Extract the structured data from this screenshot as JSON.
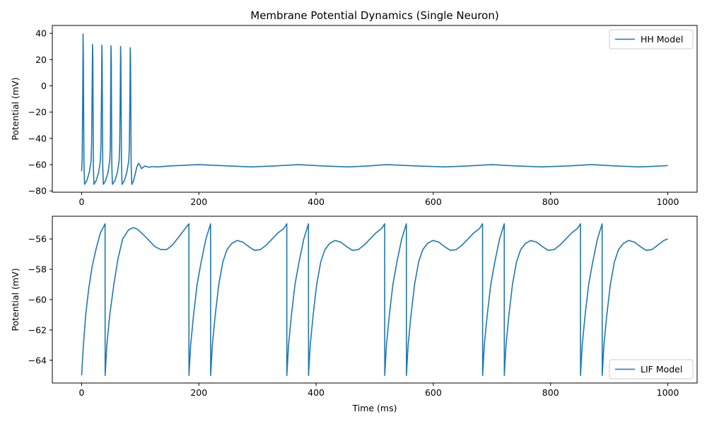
{
  "figure": {
    "title": "Membrane Potential Dynamics (Single Neuron)"
  },
  "chart_data": [
    {
      "type": "line",
      "title": "Membrane Potential Dynamics (Single Neuron)",
      "xlabel": "",
      "ylabel": "Potential (mV)",
      "xlim": [
        -50,
        1050
      ],
      "ylim": [
        -81,
        46
      ],
      "xticks": [
        0,
        200,
        400,
        600,
        800,
        1000
      ],
      "yticks": [
        -80,
        -60,
        -40,
        -20,
        0,
        20,
        40
      ],
      "grid": false,
      "legend_position": "top-right",
      "series": [
        {
          "name": "HH Model",
          "color": "#1f77b4",
          "points": [
            [
              0,
              -65
            ],
            [
              1,
              -55
            ],
            [
              2,
              0
            ],
            [
              2.5,
              39.5
            ],
            [
              3,
              20
            ],
            [
              4,
              -60
            ],
            [
              5,
              -75
            ],
            [
              9,
              -72
            ],
            [
              13,
              -66
            ],
            [
              16,
              -58
            ],
            [
              17,
              -45
            ],
            [
              18,
              0
            ],
            [
              18.6,
              31.5
            ],
            [
              19.2,
              20
            ],
            [
              20,
              -60
            ],
            [
              21,
              -75
            ],
            [
              25,
              -72
            ],
            [
              29,
              -66
            ],
            [
              32,
              -57
            ],
            [
              33,
              -45
            ],
            [
              34,
              0
            ],
            [
              34.5,
              31
            ],
            [
              35,
              20
            ],
            [
              36,
              -60
            ],
            [
              37,
              -75
            ],
            [
              41,
              -72
            ],
            [
              45,
              -66
            ],
            [
              48,
              -57
            ],
            [
              49,
              -45
            ],
            [
              49.6,
              0
            ],
            [
              50.1,
              30.5
            ],
            [
              50.6,
              20
            ],
            [
              51.5,
              -60
            ],
            [
              52.5,
              -75
            ],
            [
              57,
              -72
            ],
            [
              61,
              -66
            ],
            [
              64,
              -57
            ],
            [
              65,
              -45
            ],
            [
              66,
              0
            ],
            [
              66.5,
              30
            ],
            [
              67,
              20
            ],
            [
              68,
              -60
            ],
            [
              69,
              -75
            ],
            [
              73,
              -72
            ],
            [
              77,
              -66
            ],
            [
              80.5,
              -57
            ],
            [
              81.5,
              -45
            ],
            [
              82.5,
              0
            ],
            [
              83,
              29
            ],
            [
              83.5,
              20
            ],
            [
              84.5,
              -60
            ],
            [
              85.5,
              -75
            ],
            [
              88,
              -73
            ],
            [
              91,
              -68
            ],
            [
              94,
              -62
            ],
            [
              97,
              -59
            ],
            [
              99,
              -60
            ],
            [
              102,
              -63
            ],
            [
              105,
              -62
            ],
            [
              108,
              -61
            ],
            [
              111,
              -61.5
            ],
            [
              115,
              -62
            ],
            [
              120,
              -61.5
            ],
            [
              130,
              -61.7
            ],
            [
              150,
              -61
            ],
            [
              200,
              -60
            ],
            [
              250,
              -61
            ],
            [
              290,
              -61.7
            ],
            [
              330,
              -61
            ],
            [
              370,
              -60
            ],
            [
              410,
              -61
            ],
            [
              455,
              -61.7
            ],
            [
              490,
              -61
            ],
            [
              520,
              -60
            ],
            [
              570,
              -61
            ],
            [
              620,
              -61.7
            ],
            [
              660,
              -61
            ],
            [
              700,
              -60
            ],
            [
              740,
              -61
            ],
            [
              785,
              -61.7
            ],
            [
              830,
              -61
            ],
            [
              870,
              -60
            ],
            [
              910,
              -61
            ],
            [
              950,
              -61.7
            ],
            [
              975,
              -61.3
            ],
            [
              1000,
              -60.7
            ]
          ]
        }
      ]
    },
    {
      "type": "line",
      "title": "",
      "xlabel": "Time (ms)",
      "ylabel": "Potential (mV)",
      "xlim": [
        -50,
        1050
      ],
      "ylim": [
        -65.5,
        -54.5
      ],
      "xticks": [
        0,
        200,
        400,
        600,
        800,
        1000
      ],
      "yticks": [
        -64,
        -62,
        -60,
        -58,
        -56
      ],
      "grid": false,
      "legend_position": "bottom-right",
      "series": [
        {
          "name": "LIF Model",
          "color": "#1f77b4",
          "points": [
            [
              0,
              -65
            ],
            [
              3,
              -63
            ],
            [
              7,
              -61
            ],
            [
              12,
              -59.3
            ],
            [
              18,
              -57.8
            ],
            [
              25,
              -56.6
            ],
            [
              32,
              -55.6
            ],
            [
              40,
              -55
            ],
            [
              40.1,
              -65
            ],
            [
              43,
              -63
            ],
            [
              48,
              -61
            ],
            [
              55,
              -59
            ],
            [
              62,
              -57.3
            ],
            [
              70,
              -56
            ],
            [
              80,
              -55.4
            ],
            [
              88,
              -55.25
            ],
            [
              95,
              -55.35
            ],
            [
              105,
              -55.7
            ],
            [
              115,
              -56.1
            ],
            [
              125,
              -56.5
            ],
            [
              135,
              -56.7
            ],
            [
              145,
              -56.7
            ],
            [
              155,
              -56.4
            ],
            [
              165,
              -55.9
            ],
            [
              175,
              -55.4
            ],
            [
              183,
              -55
            ],
            [
              183.1,
              -65
            ],
            [
              186,
              -63
            ],
            [
              191,
              -61
            ],
            [
              197,
              -59
            ],
            [
              204,
              -57.5
            ],
            [
              212,
              -56
            ],
            [
              220,
              -55
            ],
            [
              220.1,
              -65
            ],
            [
              223,
              -63
            ],
            [
              228,
              -61
            ],
            [
              234,
              -59
            ],
            [
              241,
              -57.5
            ],
            [
              248,
              -56.7
            ],
            [
              256,
              -56.3
            ],
            [
              265,
              -56.1
            ],
            [
              275,
              -56.2
            ],
            [
              285,
              -56.5
            ],
            [
              295,
              -56.75
            ],
            [
              305,
              -56.7
            ],
            [
              315,
              -56.4
            ],
            [
              325,
              -56
            ],
            [
              335,
              -55.6
            ],
            [
              345,
              -55.3
            ],
            [
              350,
              -55
            ],
            [
              350.1,
              -65
            ],
            [
              353,
              -63
            ],
            [
              358,
              -61
            ],
            [
              364,
              -59
            ],
            [
              371,
              -57.5
            ],
            [
              379,
              -56
            ],
            [
              387,
              -55
            ],
            [
              387.1,
              -65
            ],
            [
              390,
              -63
            ],
            [
              395,
              -61
            ],
            [
              401,
              -59
            ],
            [
              408,
              -57.5
            ],
            [
              415,
              -56.7
            ],
            [
              423,
              -56.3
            ],
            [
              432,
              -56.1
            ],
            [
              442,
              -56.2
            ],
            [
              452,
              -56.5
            ],
            [
              462,
              -56.75
            ],
            [
              472,
              -56.7
            ],
            [
              482,
              -56.4
            ],
            [
              492,
              -56
            ],
            [
              502,
              -55.6
            ],
            [
              512,
              -55.3
            ],
            [
              517,
              -55
            ],
            [
              517.1,
              -65
            ],
            [
              520,
              -63
            ],
            [
              525,
              -61
            ],
            [
              531,
              -59
            ],
            [
              538,
              -57.5
            ],
            [
              546,
              -56
            ],
            [
              554,
              -55
            ],
            [
              554.1,
              -65
            ],
            [
              557,
              -63
            ],
            [
              562,
              -61
            ],
            [
              568,
              -59
            ],
            [
              575,
              -57.5
            ],
            [
              582,
              -56.7
            ],
            [
              590,
              -56.3
            ],
            [
              599,
              -56.1
            ],
            [
              609,
              -56.2
            ],
            [
              619,
              -56.5
            ],
            [
              629,
              -56.75
            ],
            [
              639,
              -56.7
            ],
            [
              649,
              -56.4
            ],
            [
              659,
              -56
            ],
            [
              669,
              -55.6
            ],
            [
              679,
              -55.3
            ],
            [
              684,
              -55
            ],
            [
              684.1,
              -65
            ],
            [
              687,
              -63
            ],
            [
              692,
              -61
            ],
            [
              698,
              -59
            ],
            [
              705,
              -57.5
            ],
            [
              713,
              -56
            ],
            [
              721,
              -55
            ],
            [
              721.1,
              -65
            ],
            [
              724,
              -63
            ],
            [
              729,
              -61
            ],
            [
              735,
              -59
            ],
            [
              742,
              -57.5
            ],
            [
              749,
              -56.7
            ],
            [
              757,
              -56.3
            ],
            [
              766,
              -56.1
            ],
            [
              776,
              -56.2
            ],
            [
              786,
              -56.5
            ],
            [
              796,
              -56.75
            ],
            [
              806,
              -56.7
            ],
            [
              816,
              -56.4
            ],
            [
              826,
              -56
            ],
            [
              836,
              -55.6
            ],
            [
              846,
              -55.3
            ],
            [
              851,
              -55
            ],
            [
              851.1,
              -65
            ],
            [
              854,
              -63
            ],
            [
              859,
              -61
            ],
            [
              865,
              -59
            ],
            [
              872,
              -57.5
            ],
            [
              880,
              -56
            ],
            [
              888,
              -55
            ],
            [
              888.1,
              -65
            ],
            [
              891,
              -63
            ],
            [
              896,
              -61
            ],
            [
              902,
              -59
            ],
            [
              909,
              -57.5
            ],
            [
              916,
              -56.7
            ],
            [
              924,
              -56.3
            ],
            [
              933,
              -56.1
            ],
            [
              943,
              -56.2
            ],
            [
              953,
              -56.5
            ],
            [
              963,
              -56.75
            ],
            [
              973,
              -56.7
            ],
            [
              983,
              -56.4
            ],
            [
              993,
              -56.1
            ],
            [
              1000,
              -56
            ]
          ]
        }
      ]
    }
  ]
}
